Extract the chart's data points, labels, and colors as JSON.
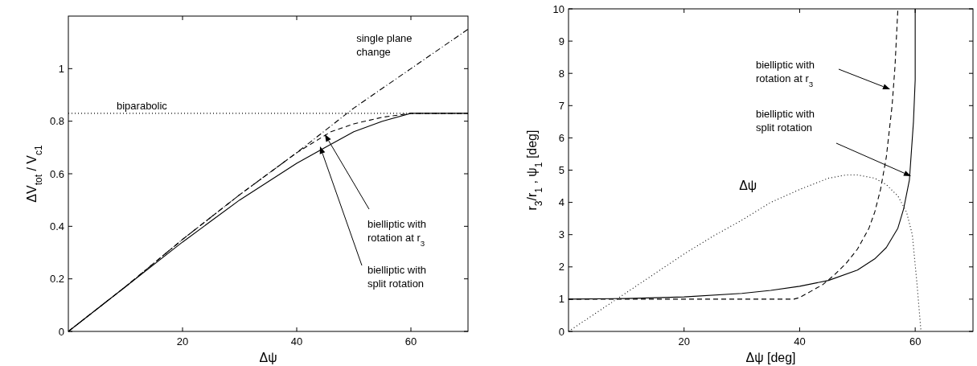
{
  "chart_data": [
    {
      "type": "line",
      "xlabel": "Δψ",
      "ylabel": "ΔV$_{tot}$ / V$_{c1}$",
      "xlim": [
        0,
        70
      ],
      "ylim": [
        0,
        1.2
      ],
      "xticks": [
        20,
        40,
        60
      ],
      "yticks": [
        0,
        0.2,
        0.4,
        0.6,
        0.8,
        1
      ],
      "grid": false,
      "series": [
        {
          "color": "#000000",
          "line_style": "dashdot",
          "x": [
            0,
            10,
            20,
            30,
            40,
            50,
            60,
            70
          ],
          "values": [
            0,
            0.17,
            0.35,
            0.52,
            0.68,
            0.85,
            1.0,
            1.15
          ]
        },
        {
          "color": "#000000",
          "line_style": "dotted",
          "x": [
            0,
            70
          ],
          "values": [
            0.83,
            0.83
          ]
        },
        {
          "color": "#000000",
          "line_style": "dashed",
          "x": [
            0,
            10,
            20,
            30,
            40,
            43,
            46,
            50,
            55,
            60,
            70
          ],
          "values": [
            0,
            0.17,
            0.35,
            0.52,
            0.68,
            0.72,
            0.76,
            0.79,
            0.815,
            0.83,
            0.83
          ]
        },
        {
          "color": "#000000",
          "line_style": "solid",
          "x": [
            0,
            10,
            20,
            30,
            40,
            45,
            50,
            55,
            60,
            70
          ],
          "values": [
            0,
            0.17,
            0.34,
            0.5,
            0.64,
            0.7,
            0.76,
            0.8,
            0.83,
            0.83
          ]
        }
      ],
      "annotations": [
        {
          "text": "single plane\nchange",
          "x": 62,
          "y": 1.03
        },
        {
          "text": "biparabolic",
          "x": 20,
          "y": 0.83
        },
        "bielliptic with\nrotation at r$_{3}$",
        "bielliptic with\nsplit rotation"
      ]
    },
    {
      "type": "line",
      "xlabel": "Δψ [deg]",
      "ylabel": "r$_{3}$/r$_{1}$ ,  ψ$_{1}$ [deg]",
      "xlim": [
        0,
        70
      ],
      "ylim": [
        0,
        10
      ],
      "xticks": [
        20,
        40,
        60
      ],
      "yticks": [
        0,
        1,
        2,
        3,
        4,
        5,
        6,
        7,
        8,
        9,
        10
      ],
      "grid": false,
      "series": [
        {
          "color": "#000000",
          "line_style": "dashed",
          "x": [
            0,
            39,
            40,
            42,
            44,
            46,
            48,
            50,
            52,
            53,
            54,
            55,
            56,
            56.5,
            57
          ],
          "values": [
            1,
            1,
            1.05,
            1.25,
            1.45,
            1.75,
            2.1,
            2.55,
            3.2,
            3.7,
            4.4,
            5.4,
            7.0,
            8.2,
            10
          ]
        },
        {
          "color": "#000000",
          "line_style": "solid",
          "x": [
            0,
            10,
            20,
            30,
            35,
            40,
            45,
            50,
            53,
            55,
            57,
            58,
            59,
            59.7,
            60,
            60
          ],
          "values": [
            1,
            1.02,
            1.07,
            1.18,
            1.27,
            1.4,
            1.58,
            1.9,
            2.25,
            2.6,
            3.2,
            3.8,
            4.7,
            6.5,
            7.8,
            10
          ]
        },
        {
          "color": "#000000",
          "line_style": "dotted",
          "x": [
            0,
            5,
            10,
            15,
            20,
            25,
            30,
            35,
            40,
            45,
            48,
            50,
            53,
            55,
            57,
            58.5,
            59.5,
            60.3,
            61
          ],
          "values": [
            0,
            0.6,
            1.2,
            1.8,
            2.4,
            2.95,
            3.45,
            4.0,
            4.4,
            4.75,
            4.85,
            4.85,
            4.75,
            4.55,
            4.2,
            3.7,
            3.0,
            1.5,
            0
          ]
        }
      ],
      "annotations": [
        {
          "text": "Δψ",
          "x": 33,
          "y": 3.8
        },
        "bielliptic with\nrotation at r$_{3}$",
        "bielliptic with\nsplit rotation"
      ]
    }
  ]
}
